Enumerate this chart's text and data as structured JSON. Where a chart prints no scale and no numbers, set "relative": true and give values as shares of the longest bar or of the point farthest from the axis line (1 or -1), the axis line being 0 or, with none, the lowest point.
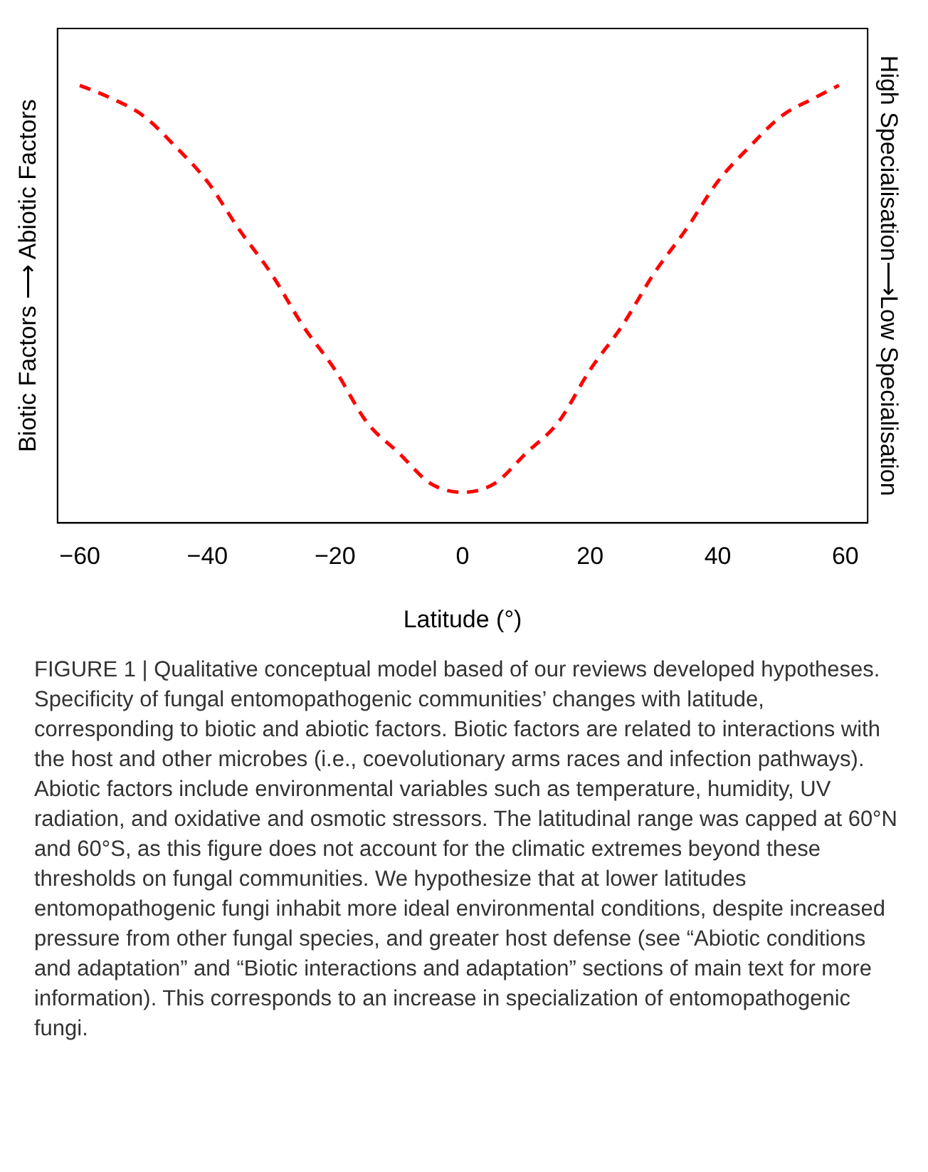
{
  "chart_data": {
    "type": "line",
    "relative": true,
    "xlabel": "Latitude (°)",
    "ylabel": "Biotic Factors ⟶ Abiotic Factors",
    "y2label": "High Specialisation⟶Low Specialisation",
    "x": [
      -60,
      -55,
      -50,
      -45,
      -40,
      -35,
      -30,
      -25,
      -20,
      -15,
      -10,
      -5,
      0,
      5,
      10,
      15,
      20,
      25,
      30,
      35,
      40,
      45,
      50,
      55,
      59
    ],
    "series": [
      {
        "color": "#ff0000",
        "values": [
          1,
          0.97,
          0.93,
          0.86,
          0.78,
          0.67,
          0.57,
          0.45,
          0.35,
          0.23,
          0.16,
          0.09,
          0.07,
          0.09,
          0.16,
          0.23,
          0.35,
          0.45,
          0.57,
          0.67,
          0.78,
          0.86,
          0.93,
          0.97,
          1
        ]
      }
    ],
    "xlim": [
      -63.5,
      63.5
    ],
    "xticks": [
      -60,
      -40,
      -20,
      0,
      20,
      40,
      60
    ],
    "grid": false,
    "legend": false,
    "marker": "none",
    "line_style": "dashed",
    "annotations": [
      "FIGURE 1 | Qualitative conceptual model based of our reviews developed hypotheses. Specificity of fungal entomopathogenic communities’ changes with latitude, corresponding to biotic and abiotic factors. Biotic factors are related to interactions with the host and other microbes (i.e., coevolutionary arms races and infection pathways). Abiotic factors include environmental variables such as temperature, humidity, UV radiation, and oxidative and osmotic stressors. The latitudinal range was capped at 60°N and 60°S, as this figure does not account for the climatic extremes beyond these thresholds on fungal communities. We hypothesize that at lower latitudes entomopathogenic fungi inhabit more ideal environmental conditions, despite increased pressure from other fungal species, and greater host defense (see “Abiotic conditions and adaptation” and “Biotic interactions and adaptation” sections of main text for more information). This corresponds to an increase in specialization of entomopathogenic fungi."
    ]
  }
}
